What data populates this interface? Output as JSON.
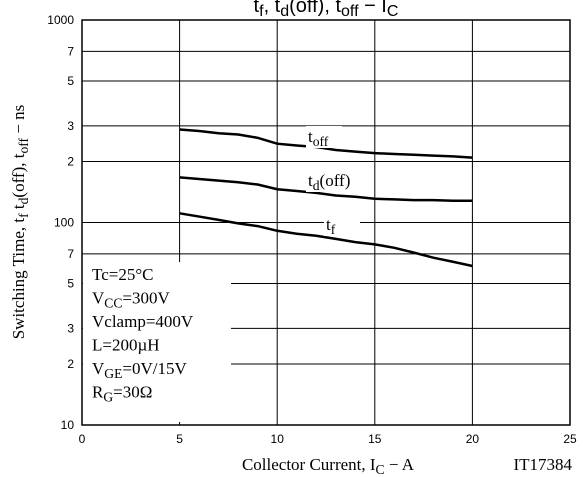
{
  "chart_data": {
    "type": "line",
    "title": [
      "t",
      "f",
      ", t",
      "d",
      "(off), t",
      "off",
      " − I",
      "C"
    ],
    "x_label": [
      "Collector Current, I",
      "C",
      "  −  A"
    ],
    "y_label": [
      "Switching Time, t",
      "f",
      " t",
      "d",
      "(off),  t",
      "off",
      " − ns"
    ],
    "note": "IT17384",
    "conditions": [
      [
        "Tc=25°C"
      ],
      [
        "V",
        "CC",
        "=300V"
      ],
      [
        "Vclamp=400V"
      ],
      [
        "L=200µH"
      ],
      [
        "V",
        "GE",
        "=0V/15V"
      ],
      [
        "R",
        "G",
        "=30Ω"
      ]
    ],
    "x": [
      5,
      6,
      7,
      8,
      9,
      10,
      11,
      12,
      13,
      14,
      15,
      16,
      17,
      18,
      19,
      20
    ],
    "series": [
      {
        "label": [
          "t",
          "off"
        ],
        "color": "#000000",
        "values": [
          288,
          283,
          276,
          272,
          262,
          245,
          240,
          236,
          228,
          224,
          220,
          218,
          216,
          214,
          212,
          209
        ]
      },
      {
        "label": [
          "t",
          "d",
          "(off)"
        ],
        "color": "#000000",
        "values": [
          167,
          164,
          161,
          158,
          154,
          146,
          143,
          140,
          136,
          134,
          131,
          130,
          129,
          129,
          128,
          128
        ]
      },
      {
        "label": [
          "t",
          "f"
        ],
        "color": "#000000",
        "values": [
          111,
          107,
          103,
          99,
          96,
          91,
          88,
          86,
          83,
          80,
          78,
          75,
          71,
          67,
          64,
          61
        ]
      }
    ],
    "xlim": [
      0,
      25
    ],
    "xticks": [
      0,
      5,
      10,
      15,
      20,
      25
    ],
    "ylim": [
      10,
      1000
    ],
    "log_y": true,
    "grid": true,
    "yticks": [
      10,
      {
        "value": 20,
        "label": "2"
      },
      {
        "value": 30,
        "label": "3"
      },
      {
        "value": 50,
        "label": "5"
      },
      {
        "value": 70,
        "label": "7"
      },
      100,
      {
        "value": 200,
        "label": "2"
      },
      {
        "value": 300,
        "label": "3"
      },
      {
        "value": 500,
        "label": "5"
      },
      {
        "value": 700,
        "label": "7"
      },
      1000
    ]
  }
}
